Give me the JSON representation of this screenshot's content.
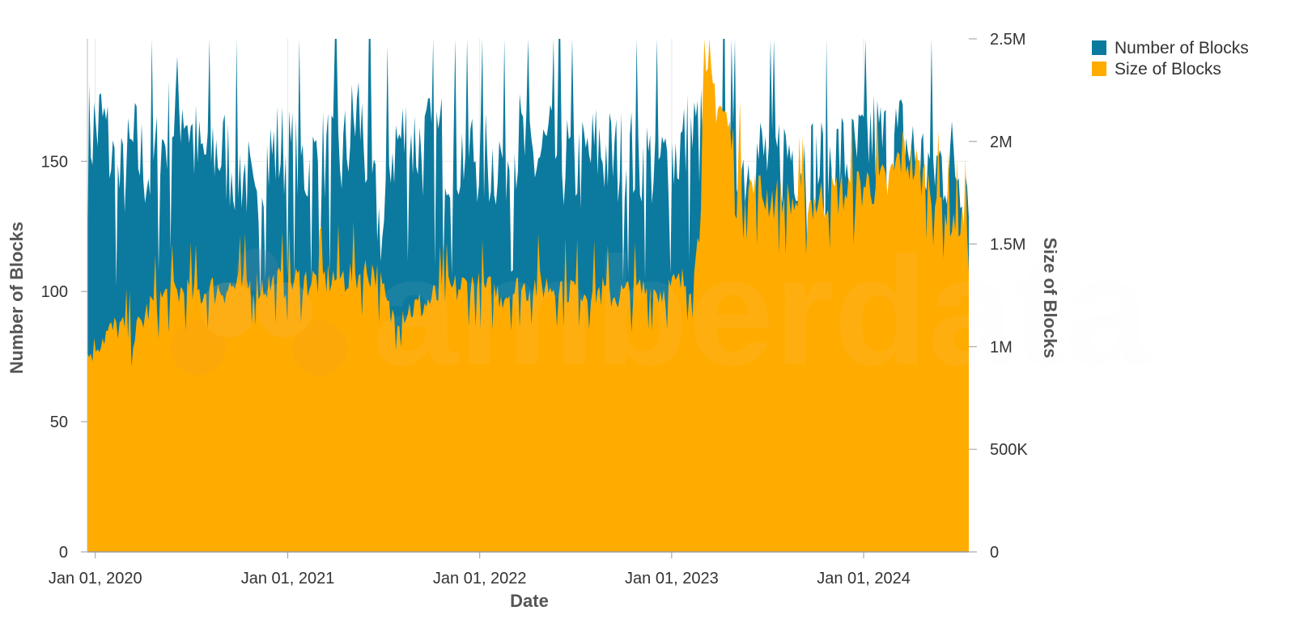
{
  "chart_data": {
    "type": "area",
    "x_label": "Date",
    "x_ticks": [
      "Jan 01, 2020",
      "Jan 01, 2021",
      "Jan 01, 2022",
      "Jan 01, 2023",
      "Jan 01, 2024"
    ],
    "x_range": [
      "2019-12-17",
      "2024-07-19"
    ],
    "y_left": {
      "label": "Number of Blocks",
      "range": [
        0,
        197
      ],
      "ticks": [
        0,
        50,
        100,
        150
      ]
    },
    "y_right": {
      "label": "Size of Blocks",
      "range": [
        0,
        2500000
      ],
      "ticks": [
        {
          "value": 0,
          "label": "0"
        },
        {
          "value": 500000,
          "label": "500K"
        },
        {
          "value": 1000000,
          "label": "1M"
        },
        {
          "value": 1500000,
          "label": "1.5M"
        },
        {
          "value": 2000000,
          "label": "2M"
        },
        {
          "value": 2500000,
          "label": "2.5M"
        }
      ]
    },
    "grid": true,
    "legend_position": "top-right",
    "series": [
      {
        "name": "Number of Blocks",
        "axis": "left",
        "color": "#0c7a9e",
        "points": [
          [
            "2019-12-17",
            160
          ],
          [
            "2020-01-15",
            165
          ],
          [
            "2020-02-15",
            140
          ],
          [
            "2020-03-15",
            155
          ],
          [
            "2020-04-15",
            145
          ],
          [
            "2020-05-15",
            160
          ],
          [
            "2020-06-15",
            175
          ],
          [
            "2020-07-15",
            150
          ],
          [
            "2020-08-15",
            155
          ],
          [
            "2020-09-15",
            150
          ],
          [
            "2020-10-15",
            145
          ],
          [
            "2020-11-01",
            125
          ],
          [
            "2020-11-15",
            150
          ],
          [
            "2020-12-15",
            155
          ],
          [
            "2021-01-15",
            150
          ],
          [
            "2021-02-15",
            148
          ],
          [
            "2021-03-15",
            152
          ],
          [
            "2021-04-15",
            150
          ],
          [
            "2021-05-15",
            170
          ],
          [
            "2021-06-15",
            135
          ],
          [
            "2021-07-01",
            120
          ],
          [
            "2021-07-15",
            155
          ],
          [
            "2021-08-15",
            160
          ],
          [
            "2021-09-15",
            155
          ],
          [
            "2021-10-15",
            158
          ],
          [
            "2021-11-15",
            152
          ],
          [
            "2021-12-15",
            155
          ],
          [
            "2022-01-15",
            150
          ],
          [
            "2022-02-15",
            152
          ],
          [
            "2022-03-15",
            158
          ],
          [
            "2022-04-15",
            150
          ],
          [
            "2022-05-15",
            155
          ],
          [
            "2022-06-15",
            150
          ],
          [
            "2022-07-15",
            148
          ],
          [
            "2022-08-15",
            155
          ],
          [
            "2022-09-15",
            150
          ],
          [
            "2022-10-15",
            152
          ],
          [
            "2022-11-15",
            150
          ],
          [
            "2022-12-15",
            148
          ],
          [
            "2023-01-15",
            155
          ],
          [
            "2023-02-15",
            160
          ],
          [
            "2023-03-15",
            158
          ],
          [
            "2023-04-15",
            150
          ],
          [
            "2023-05-15",
            148
          ],
          [
            "2023-06-15",
            152
          ],
          [
            "2023-07-15",
            150
          ],
          [
            "2023-08-15",
            155
          ],
          [
            "2023-09-15",
            150
          ],
          [
            "2023-10-15",
            148
          ],
          [
            "2023-11-15",
            152
          ],
          [
            "2023-12-15",
            150
          ],
          [
            "2024-01-15",
            160
          ],
          [
            "2024-02-15",
            155
          ],
          [
            "2024-03-15",
            158
          ],
          [
            "2024-04-15",
            150
          ],
          [
            "2024-05-15",
            148
          ],
          [
            "2024-06-15",
            150
          ],
          [
            "2024-07-19",
            145
          ]
        ]
      },
      {
        "name": "Size of Blocks",
        "axis": "right",
        "color": "#ffab00",
        "points": [
          [
            "2019-12-17",
            950000
          ],
          [
            "2020-01-15",
            1050000
          ],
          [
            "2020-02-15",
            1100000
          ],
          [
            "2020-03-15",
            1050000
          ],
          [
            "2020-04-15",
            1200000
          ],
          [
            "2020-05-15",
            1250000
          ],
          [
            "2020-06-15",
            1270000
          ],
          [
            "2020-07-15",
            1260000
          ],
          [
            "2020-08-15",
            1280000
          ],
          [
            "2020-09-15",
            1290000
          ],
          [
            "2020-10-15",
            1300000
          ],
          [
            "2020-11-15",
            1300000
          ],
          [
            "2020-12-15",
            1310000
          ],
          [
            "2021-01-15",
            1320000
          ],
          [
            "2021-02-15",
            1320000
          ],
          [
            "2021-03-15",
            1330000
          ],
          [
            "2021-04-15",
            1340000
          ],
          [
            "2021-05-15",
            1350000
          ],
          [
            "2021-06-15",
            1380000
          ],
          [
            "2021-07-15",
            1150000
          ],
          [
            "2021-08-15",
            1180000
          ],
          [
            "2021-09-15",
            1200000
          ],
          [
            "2021-10-15",
            1250000
          ],
          [
            "2021-11-15",
            1280000
          ],
          [
            "2021-12-15",
            1300000
          ],
          [
            "2022-01-15",
            1270000
          ],
          [
            "2022-02-15",
            1260000
          ],
          [
            "2022-03-15",
            1280000
          ],
          [
            "2022-04-15",
            1300000
          ],
          [
            "2022-05-15",
            1300000
          ],
          [
            "2022-06-15",
            1290000
          ],
          [
            "2022-07-15",
            1280000
          ],
          [
            "2022-08-15",
            1270000
          ],
          [
            "2022-09-15",
            1250000
          ],
          [
            "2022-10-15",
            1260000
          ],
          [
            "2022-11-15",
            1280000
          ],
          [
            "2022-12-15",
            1270000
          ],
          [
            "2023-01-15",
            1300000
          ],
          [
            "2023-02-15",
            1350000
          ],
          [
            "2023-03-01",
            2150000
          ],
          [
            "2023-03-15",
            2300000
          ],
          [
            "2023-04-15",
            2100000
          ],
          [
            "2023-05-15",
            1800000
          ],
          [
            "2023-06-15",
            1750000
          ],
          [
            "2023-07-15",
            1720000
          ],
          [
            "2023-08-15",
            1700000
          ],
          [
            "2023-09-15",
            1700000
          ],
          [
            "2023-10-15",
            1720000
          ],
          [
            "2023-11-15",
            1750000
          ],
          [
            "2023-12-15",
            1760000
          ],
          [
            "2024-01-15",
            1800000
          ],
          [
            "2024-02-15",
            1780000
          ],
          [
            "2024-03-15",
            1950000
          ],
          [
            "2024-04-15",
            1850000
          ],
          [
            "2024-05-15",
            1750000
          ],
          [
            "2024-06-15",
            1620000
          ],
          [
            "2024-07-19",
            1600000
          ]
        ]
      }
    ]
  },
  "watermark": {
    "text": "amberdata"
  }
}
